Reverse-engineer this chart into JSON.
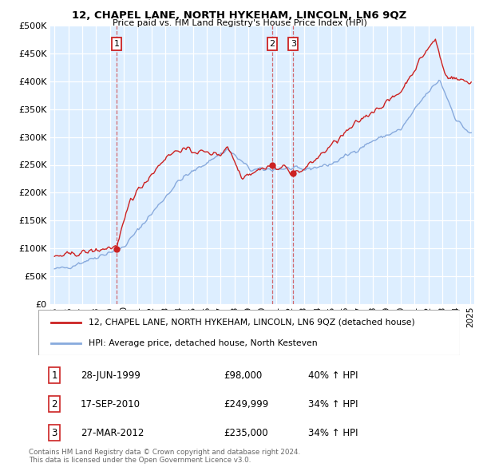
{
  "title": "12, CHAPEL LANE, NORTH HYKEHAM, LINCOLN, LN6 9QZ",
  "subtitle": "Price paid vs. HM Land Registry's House Price Index (HPI)",
  "bg_color": "#ddeeff",
  "red_color": "#cc2222",
  "blue_color": "#88aadd",
  "ylim_max": 500000,
  "yticks": [
    0,
    50000,
    100000,
    150000,
    200000,
    250000,
    300000,
    350000,
    400000,
    450000,
    500000
  ],
  "xlim_min": 1994.7,
  "xlim_max": 2025.3,
  "legend_line1": "12, CHAPEL LANE, NORTH HYKEHAM, LINCOLN, LN6 9QZ (detached house)",
  "legend_line2": "HPI: Average price, detached house, North Kesteven",
  "transactions": [
    {
      "num": 1,
      "date": "28-JUN-1999",
      "price": 98000,
      "price_str": "£98,000",
      "pct": "40%",
      "year_x": 1999.48
    },
    {
      "num": 2,
      "date": "17-SEP-2010",
      "price": 249999,
      "price_str": "£249,999",
      "pct": "34%",
      "year_x": 2010.72
    },
    {
      "num": 3,
      "date": "27-MAR-2012",
      "price": 235000,
      "price_str": "£235,000",
      "pct": "34%",
      "year_x": 2012.23
    }
  ],
  "footer1": "Contains HM Land Registry data © Crown copyright and database right 2024.",
  "footer2": "This data is licensed under the Open Government Licence v3.0."
}
